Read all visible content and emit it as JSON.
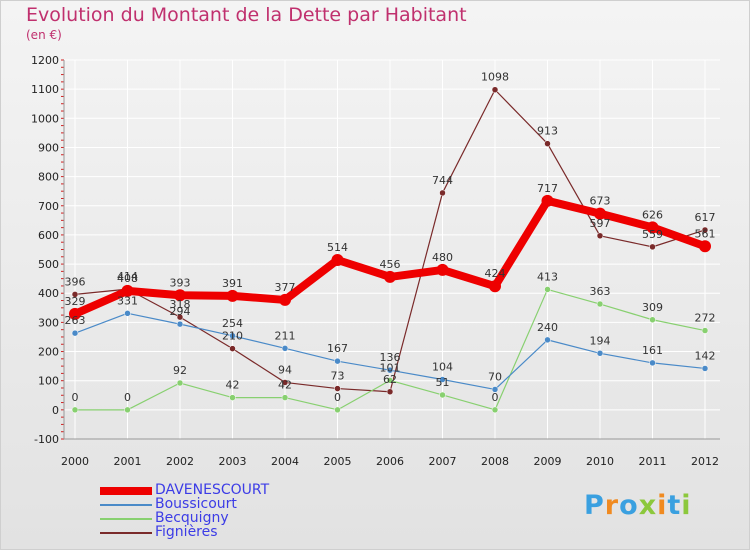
{
  "header": {
    "title": "Evolution du Montant de la Dette par Habitant",
    "unit": "(en €)"
  },
  "chart_data": {
    "type": "line",
    "title": "Evolution du Montant de la Dette par Habitant",
    "ylabel": "(en €)",
    "xlabel": "",
    "ylim": [
      -100,
      1200
    ],
    "yticks": [
      -100,
      0,
      100,
      200,
      300,
      400,
      500,
      600,
      700,
      800,
      900,
      1000,
      1100,
      1200
    ],
    "grid": true,
    "legend": "bottom-left",
    "categories": [
      "2000",
      "2001",
      "2002",
      "2003",
      "2004",
      "2005",
      "2006",
      "2007",
      "2008",
      "2009",
      "2010",
      "2011",
      "2012"
    ],
    "series": [
      {
        "name": "Fignières",
        "color": "#7a2a2a",
        "values": [
          396,
          414,
          318,
          210,
          94,
          73,
          62,
          744,
          1098,
          913,
          597,
          559,
          617
        ]
      },
      {
        "name": "Becquigny",
        "color": "#88d070",
        "values": [
          0,
          0,
          92,
          42,
          42,
          0,
          101,
          51,
          0,
          413,
          363,
          309,
          272
        ]
      },
      {
        "name": "Boussicourt",
        "color": "#4a8ac8",
        "values": [
          263,
          331,
          294,
          254,
          211,
          167,
          136,
          104,
          70,
          240,
          194,
          161,
          142
        ]
      },
      {
        "name": "DAVENESCOURT",
        "color": "#ee0000",
        "values": [
          329,
          408,
          393,
          391,
          377,
          514,
          456,
          480,
          424,
          717,
          673,
          626,
          561
        ]
      }
    ]
  },
  "legend": {
    "items": [
      {
        "label": "DAVENESCOURT",
        "color": "#ee0000"
      },
      {
        "label": "Boussicourt",
        "color": "#4a8ac8"
      },
      {
        "label": "Becquigny",
        "color": "#88d070"
      },
      {
        "label": "Fignières",
        "color": "#7a2a2a"
      }
    ]
  },
  "logo": {
    "letters": [
      "P",
      "r",
      "o",
      "x",
      "i",
      "t",
      "i"
    ],
    "colors": [
      "#3aa0e0",
      "#f08a20",
      "#3aa0e0",
      "#8cc83c",
      "#f08a20",
      "#3aa0e0",
      "#8cc83c"
    ]
  }
}
